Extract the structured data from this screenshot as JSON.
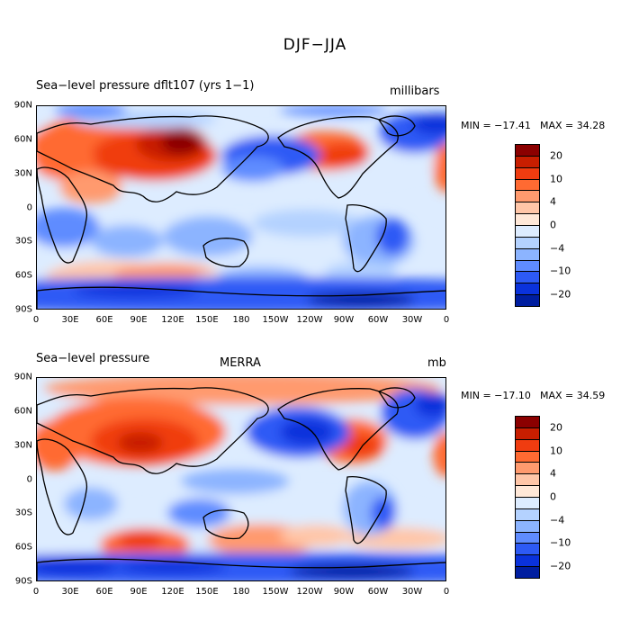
{
  "title": "DJF−JJA",
  "panels": [
    {
      "title": "Sea−level pressure  dflt107 (yrs 1−1)",
      "subtitle": "",
      "units": "millibars",
      "min_label": "MIN = −17.41",
      "max_label": "MAX =  34.28"
    },
    {
      "title": "Sea−level pressure",
      "subtitle": "MERRA",
      "units": "mb",
      "min_label": "MIN = −17.10",
      "max_label": "MAX =  34.59"
    }
  ],
  "lat_labels": [
    "90N",
    "60N",
    "30N",
    "0",
    "30S",
    "60S",
    "90S"
  ],
  "lon_labels": [
    "0",
    "30E",
    "60E",
    "90E",
    "120E",
    "150E",
    "180",
    "150W",
    "120W",
    "90W",
    "60W",
    "30W",
    "0"
  ],
  "colorbar_labels": [
    "20",
    "10",
    "4",
    "0",
    "−4",
    "−10",
    "−20"
  ],
  "colorbar_colors": [
    "#8b0000",
    "#c81e00",
    "#f03c10",
    "#ff6a32",
    "#ff9a6e",
    "#ffc6a8",
    "#ffe8d8",
    "#ddecff",
    "#b4d2ff",
    "#8cb4ff",
    "#5f8cff",
    "#2d5af5",
    "#0a32dc",
    "#001ea0"
  ]
}
